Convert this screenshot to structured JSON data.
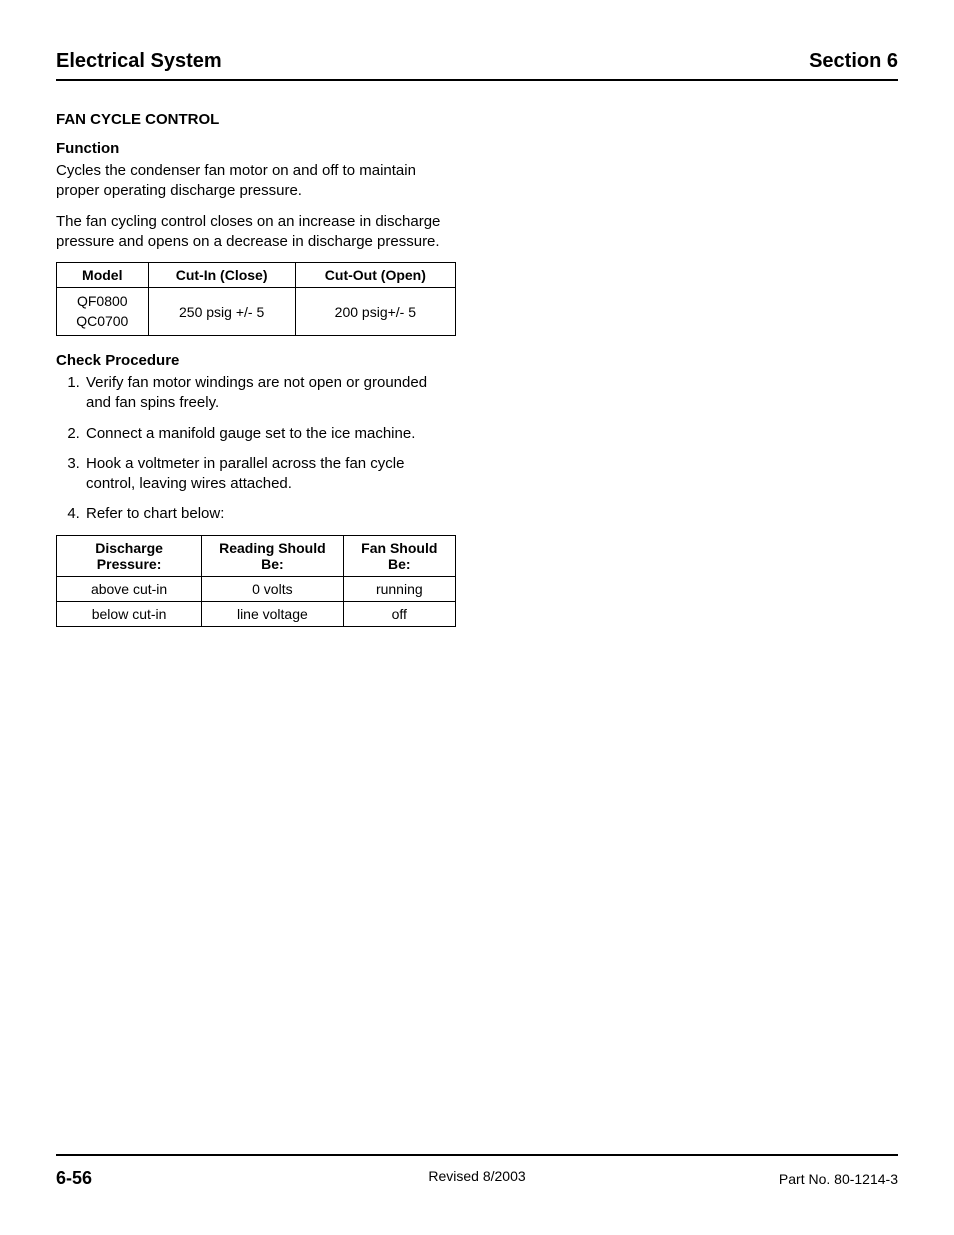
{
  "header": {
    "left": "Electrical System",
    "right": "Section 6"
  },
  "section_title": "FAN CYCLE CONTROL",
  "function": {
    "heading": "Function",
    "para1": "Cycles the condenser fan motor on and off to maintain proper operating discharge pressure.",
    "para2": "The fan cycling control closes on an increase in discharge pressure and opens on a decrease in discharge pressure."
  },
  "table1": {
    "headers": {
      "c1": "Model",
      "c2": "Cut-In (Close)",
      "c3": "Cut-Out (Open)"
    },
    "row": {
      "model1": "QF0800",
      "model2": "QC0700",
      "cutin": "250 psig +/- 5",
      "cutout": "200 psig+/- 5"
    }
  },
  "check": {
    "heading": "Check Procedure",
    "steps": {
      "s1": "Verify fan motor windings are not open or grounded and fan spins freely.",
      "s2": "Connect a manifold gauge set to the ice machine.",
      "s3": "Hook a voltmeter in parallel across the fan cycle control, leaving wires attached.",
      "s4": "Refer to chart below:"
    }
  },
  "table2": {
    "headers": {
      "c1": "Discharge Pressure:",
      "c2": "Reading Should Be:",
      "c3": "Fan Should Be:"
    },
    "rows": {
      "r1": {
        "c1": "above cut-in",
        "c2": "0 volts",
        "c3": "running"
      },
      "r2": {
        "c1": "below cut-in",
        "c2": "line voltage",
        "c3": "off"
      }
    }
  },
  "footer": {
    "left": "6-56",
    "center": "Revised 8/2003",
    "right": "Part No. 80-1214-3"
  }
}
